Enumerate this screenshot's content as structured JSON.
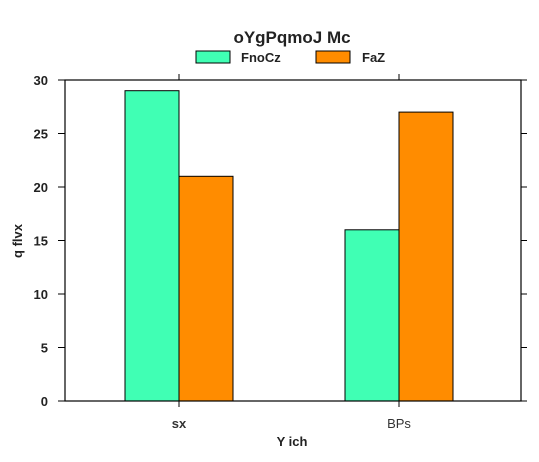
{
  "chart_data": {
    "type": "bar",
    "title": "oYgPqmoJ Mc",
    "xlabel": "Y ich",
    "ylabel": "q flvx",
    "categories": [
      "sx",
      "BPs"
    ],
    "series": [
      {
        "name": "FnoCz",
        "color": "#40ffb4",
        "values": [
          29,
          16
        ]
      },
      {
        "name": "FaZ",
        "color": "#ff8c00",
        "values": [
          21,
          27
        ]
      }
    ],
    "ylim": [
      0,
      30
    ],
    "yticks": [
      0,
      5,
      10,
      15,
      20,
      25,
      30
    ],
    "grid": false,
    "legend_position": "top-center"
  }
}
